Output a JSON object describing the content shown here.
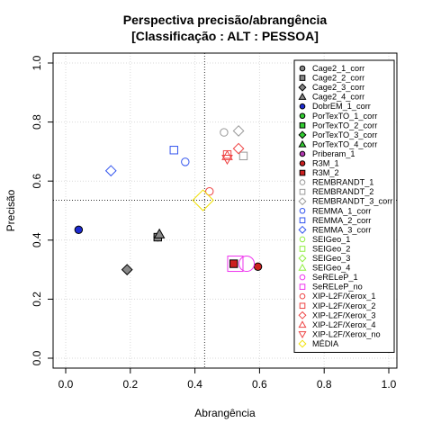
{
  "chart_data": {
    "type": "scatter",
    "title": "Perspectiva precisão/abrangência",
    "subtitle": "[Classificação : ALT : PESSOA]",
    "xlabel": "Abrangência",
    "ylabel": "Precisão",
    "xlim": [
      0,
      1
    ],
    "ylim": [
      0,
      1
    ],
    "x_ticks": [
      "0.0",
      "0.2",
      "0.4",
      "0.6",
      "0.8",
      "1.0"
    ],
    "y_ticks": [
      "0.0",
      "0.2",
      "0.4",
      "0.6",
      "0.8",
      "1.0"
    ],
    "grid": true,
    "legend_position": "top-right",
    "reference_lines": {
      "x": 0.43,
      "y": 0.535
    },
    "series": [
      {
        "name": "Cage2_1_corr",
        "shape": "circle",
        "color": "#555555",
        "fill": "#888888",
        "x": 0.285,
        "y": 0.41
      },
      {
        "name": "Cage2_2_corr",
        "shape": "square",
        "color": "#555555",
        "fill": "#888888",
        "x": 0.285,
        "y": 0.41
      },
      {
        "name": "Cage2_3_corr",
        "shape": "diamond",
        "color": "#555555",
        "fill": "#888888",
        "x": 0.19,
        "y": 0.3
      },
      {
        "name": "Cage2_4_corr",
        "shape": "triangle-up",
        "color": "#555555",
        "fill": "#888888",
        "x": 0.29,
        "y": 0.42
      },
      {
        "name": "DobrEM_1_corr",
        "shape": "circle",
        "color": "#1d2bd1",
        "fill": "#1d2bd1",
        "x": 0.04,
        "y": 0.435
      },
      {
        "name": "PorTexTO_1_corr",
        "shape": "circle",
        "color": "#1a8a1a",
        "fill": "#32cd32"
      },
      {
        "name": "PorTexTO_2_corr",
        "shape": "square",
        "color": "#1a8a1a",
        "fill": "#32cd32"
      },
      {
        "name": "PorTexTO_3_corr",
        "shape": "diamond",
        "color": "#1a8a1a",
        "fill": "#32cd32"
      },
      {
        "name": "PorTexTO_4_corr",
        "shape": "triangle-up",
        "color": "#1a8a1a",
        "fill": "#32cd32"
      },
      {
        "name": "Priberam_1",
        "shape": "circle",
        "color": "#8b008b",
        "fill": "#b038b0"
      },
      {
        "name": "R3M_1",
        "shape": "circle",
        "color": "#8b1010",
        "fill": "#cc2020",
        "x": 0.595,
        "y": 0.31
      },
      {
        "name": "R3M_2",
        "shape": "square",
        "color": "#8b1010",
        "fill": "#cc2020",
        "x": 0.52,
        "y": 0.32
      },
      {
        "name": "REMBRANDT_1",
        "shape": "circle-open",
        "color": "#999999",
        "x": 0.49,
        "y": 0.765
      },
      {
        "name": "REMBRANDT_2",
        "shape": "square-open",
        "color": "#999999",
        "x": 0.55,
        "y": 0.685
      },
      {
        "name": "REMBRANDT_3_corr",
        "shape": "diamond-open",
        "color": "#999999",
        "x": 0.535,
        "y": 0.77
      },
      {
        "name": "REMMA_1_corr",
        "shape": "circle-open",
        "color": "#3355ee",
        "x": 0.37,
        "y": 0.665
      },
      {
        "name": "REMMA_2_corr",
        "shape": "square-open",
        "color": "#3355ee",
        "x": 0.335,
        "y": 0.705
      },
      {
        "name": "REMMA_3_corr",
        "shape": "diamond-open",
        "color": "#3355ee",
        "x": 0.14,
        "y": 0.635
      },
      {
        "name": "SEIGeo_1",
        "shape": "circle-open",
        "color": "#90ee40"
      },
      {
        "name": "SEIGeo_2",
        "shape": "square-open",
        "color": "#90ee40"
      },
      {
        "name": "SEIGeo_3",
        "shape": "diamond-open",
        "color": "#90ee40"
      },
      {
        "name": "SEIGeo_4",
        "shape": "triangle-up-open",
        "color": "#90ee40"
      },
      {
        "name": "SeRELeP_1",
        "shape": "circle-open",
        "color": "#ee33ee",
        "x": 0.56,
        "y": 0.32,
        "size": "large"
      },
      {
        "name": "SeRELeP_no",
        "shape": "square-open",
        "color": "#ee33ee",
        "x": 0.525,
        "y": 0.32,
        "size": "large"
      },
      {
        "name": "XIP-L2F/Xerox_1",
        "shape": "circle-open",
        "color": "#ee4444",
        "x": 0.445,
        "y": 0.565
      },
      {
        "name": "XIP-L2F/Xerox_2",
        "shape": "square-open",
        "color": "#ee4444",
        "x": 0.5,
        "y": 0.69
      },
      {
        "name": "XIP-L2F/Xerox_3",
        "shape": "diamond-open",
        "color": "#ee4444",
        "x": 0.535,
        "y": 0.71
      },
      {
        "name": "XIP-L2F/Xerox_4",
        "shape": "triangle-up-open",
        "color": "#ee4444",
        "x": 0.5,
        "y": 0.685
      },
      {
        "name": "XIP-L2F/Xerox_no",
        "shape": "triangle-down-open",
        "color": "#ee4444",
        "x": 0.5,
        "y": 0.675
      },
      {
        "name": "MÉDIA",
        "shape": "diamond-open",
        "color": "#f0e000",
        "x": 0.425,
        "y": 0.535,
        "size": "large"
      }
    ]
  }
}
